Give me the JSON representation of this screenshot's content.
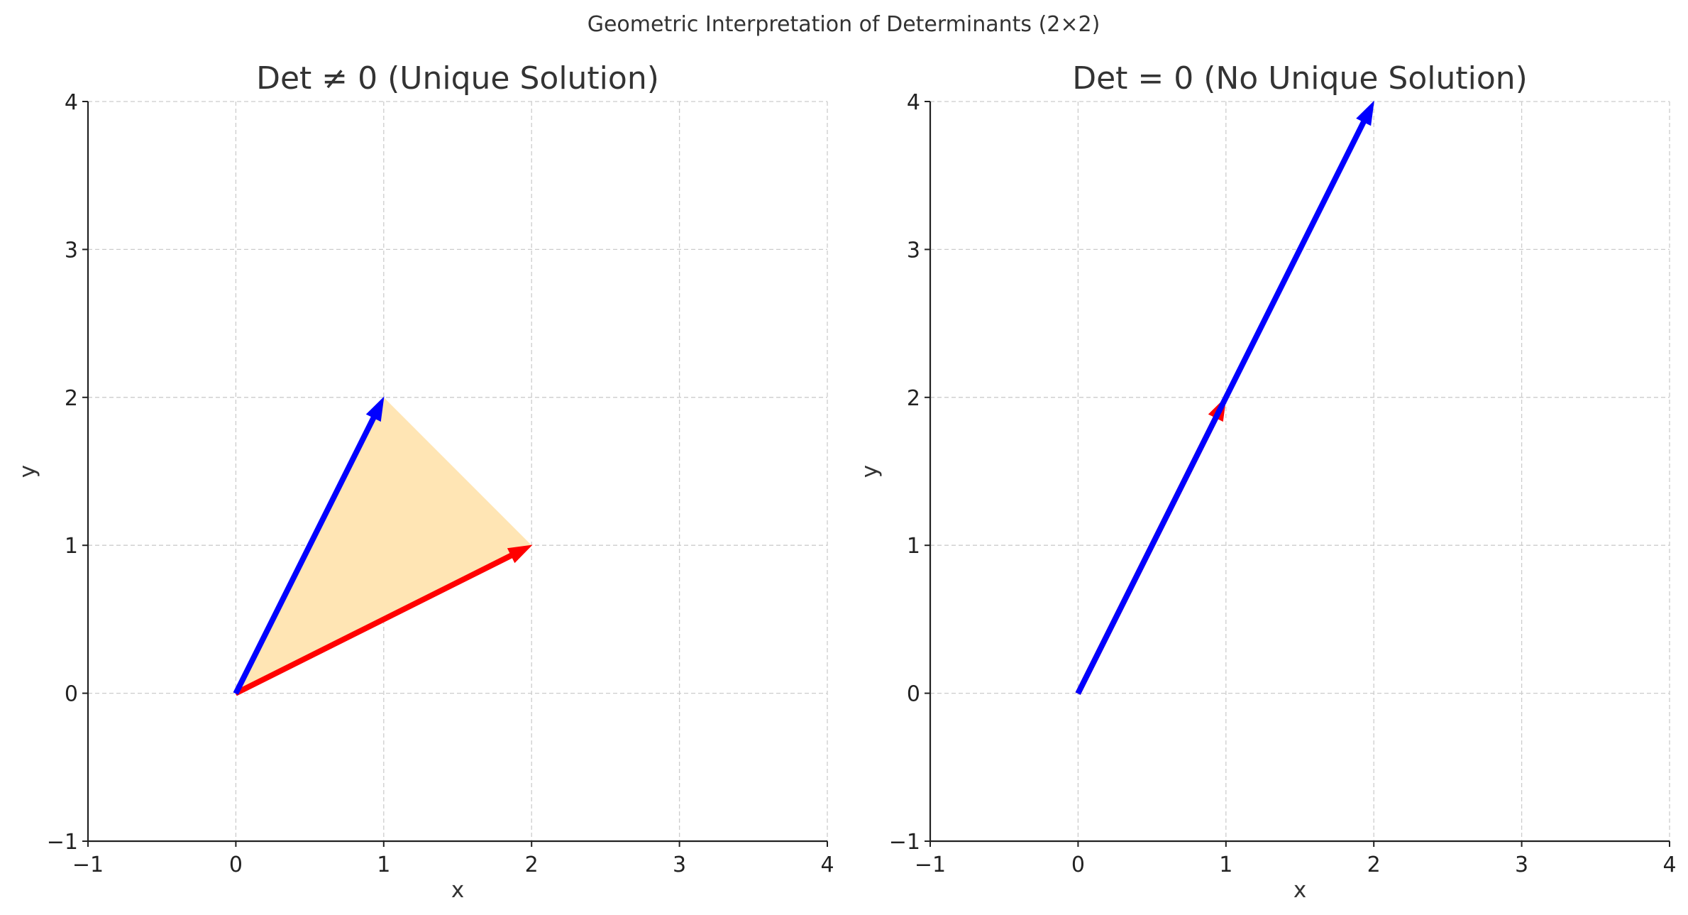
{
  "figure": {
    "suptitle": "Geometric Interpretation of Determinants (2×2)"
  },
  "chart_data": [
    {
      "type": "vector-plot",
      "title": "Det ≠ 0 (Unique Solution)",
      "xlabel": "x",
      "ylabel": "y",
      "xlim": [
        -1,
        4
      ],
      "ylim": [
        -1,
        4
      ],
      "xticks": [
        -1,
        0,
        1,
        2,
        3,
        4
      ],
      "yticks": [
        -1,
        0,
        1,
        2,
        3,
        4
      ],
      "tick_labels": [
        "−1",
        "0",
        "1",
        "2",
        "3",
        "4"
      ],
      "grid": true,
      "grid_style": "dashed",
      "vectors": [
        {
          "origin": [
            0,
            0
          ],
          "tip": [
            2,
            1
          ],
          "color": "#ff0000"
        },
        {
          "origin": [
            0,
            0
          ],
          "tip": [
            1,
            2
          ],
          "color": "#0000ff"
        }
      ],
      "filled_region": {
        "points": [
          [
            0,
            0
          ],
          [
            1,
            2
          ],
          [
            2,
            1
          ]
        ],
        "color": "#ffe5b4"
      }
    },
    {
      "type": "vector-plot",
      "title": "Det = 0 (No Unique Solution)",
      "xlabel": "x",
      "ylabel": "y",
      "xlim": [
        -1,
        4
      ],
      "ylim": [
        -1,
        4
      ],
      "xticks": [
        -1,
        0,
        1,
        2,
        3,
        4
      ],
      "yticks": [
        -1,
        0,
        1,
        2,
        3,
        4
      ],
      "tick_labels": [
        "−1",
        "0",
        "1",
        "2",
        "3",
        "4"
      ],
      "grid": true,
      "grid_style": "dashed",
      "vectors": [
        {
          "origin": [
            0,
            0
          ],
          "tip": [
            1,
            2
          ],
          "color": "#ff0000"
        },
        {
          "origin": [
            0,
            0
          ],
          "tip": [
            2,
            4
          ],
          "color": "#0000ff"
        }
      ]
    }
  ]
}
